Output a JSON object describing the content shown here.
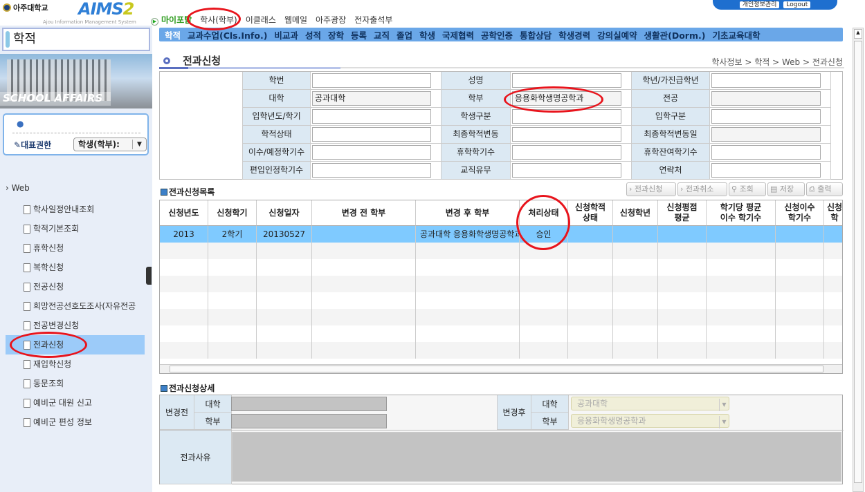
{
  "header": {
    "univ_name": "아주대학교",
    "logo": "AIMS2",
    "logo_sub": "Ajou Information Management System",
    "top_menu": [
      "마이포탈",
      "학사(학부)",
      "이클래스",
      "웹메일",
      "아주광장",
      "전자출석부"
    ],
    "user_links": [
      "개인정보관리",
      "Logout"
    ]
  },
  "nav": [
    "학적",
    "교과수업(Cls.Info.)",
    "비교과",
    "성적",
    "장학",
    "등록",
    "교직",
    "졸업",
    "학생",
    "국제협력",
    "공학인증",
    "통합상담",
    "학생경력",
    "강의실예약",
    "생활관(Dorm.)",
    "기초교육대학"
  ],
  "sidebar": {
    "title": "학적",
    "image_caption": "SCHOOL AFFAIRS",
    "role_label": "대표권한",
    "role_value": "학생(학부):",
    "tree_root": "Web",
    "items": [
      "학사일정안내조회",
      "학적기본조회",
      "휴학신청",
      "복학신청",
      "전공신청",
      "희망전공선호도조사(자유전공",
      "전공변경신청",
      "전과신청",
      "재입학신청",
      "동문조회",
      "예비군 대원 신고",
      "예비군 편성 정보"
    ],
    "selected": "전과신청"
  },
  "page": {
    "title": "전과신청",
    "breadcrumb": "학사정보 > 학적 > Web > 전과신청"
  },
  "student_info": {
    "rows": [
      [
        {
          "label": "학번",
          "value": ""
        },
        {
          "label": "성명",
          "value": ""
        },
        {
          "label": "학년/가진급학년",
          "value": ""
        }
      ],
      [
        {
          "label": "대학",
          "value": "공과대학"
        },
        {
          "label": "학부",
          "value": "응용화학생명공학과"
        },
        {
          "label": "전공",
          "value": ""
        }
      ],
      [
        {
          "label": "입학년도/학기",
          "value": ""
        },
        {
          "label": "학생구분",
          "value": ""
        },
        {
          "label": "입학구분",
          "value": ""
        }
      ],
      [
        {
          "label": "학적상태",
          "value": ""
        },
        {
          "label": "최종학적변동",
          "value": ""
        },
        {
          "label": "최종학적변동일",
          "value": ""
        }
      ],
      [
        {
          "label": "이수/예정학기수",
          "value": ""
        },
        {
          "label": "휴학학기수",
          "value": ""
        },
        {
          "label": "휴학잔여학기수",
          "value": ""
        }
      ],
      [
        {
          "label": "편입인정학기수",
          "value": ""
        },
        {
          "label": "교직유무",
          "value": ""
        },
        {
          "label": "연락처",
          "value": ""
        }
      ]
    ]
  },
  "list": {
    "title": "전과신청목록",
    "buttons": [
      "전과신청",
      "전과취소",
      "조회",
      "저장",
      "출력"
    ],
    "columns": [
      "신청년도",
      "신청학기",
      "신청일자",
      "변경 전 학부",
      "변경 후 학부",
      "처리상태",
      "신청학적\n상태",
      "신청학년",
      "신청평점\n평균",
      "학기당 평균\n이수 학기수",
      "신청이수\n학기수",
      "신청\n학"
    ],
    "rows": [
      [
        "2013",
        "2학기",
        "20130527",
        "",
        "공과대학 응용화학생명공학과",
        "승인",
        "",
        "",
        "",
        "",
        "",
        ""
      ]
    ]
  },
  "detail": {
    "title": "전과신청상세",
    "before_label": "변경전",
    "after_label": "변경후",
    "college_label": "대학",
    "dept_label": "학부",
    "after_college": "공과대학",
    "after_dept": "응용화학생명공학과",
    "reason_label": "전과사유"
  },
  "colors": {
    "nav_bg": "#6aa7e8",
    "selected_row": "#7fcaff",
    "label_bg": "#dce9f3",
    "annotation": "#e8141c"
  }
}
